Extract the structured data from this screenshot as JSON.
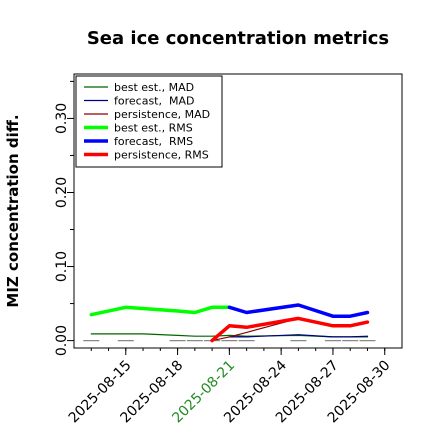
{
  "chart_data": {
    "type": "line",
    "title": "Sea ice concentration metrics",
    "ylabel": "MIZ concentration diff.",
    "xlabel": "",
    "ylim": [
      -0.01,
      0.36
    ],
    "yticks": [
      0.0,
      0.1,
      0.2,
      0.3
    ],
    "ytick_labels": [
      "0.00",
      "0.10",
      "0.20",
      "0.30"
    ],
    "xlim": [
      "2025-08-12",
      "2025-08-31"
    ],
    "xticks": [
      "2025-08-15",
      "2025-08-18",
      "2025-08-21",
      "2025-08-24",
      "2025-08-27",
      "2025-08-30"
    ],
    "xtick_labels": [
      "2025-08-15",
      "2025-08-18",
      "2025-08-21",
      "2025-08-24",
      "2025-08-27",
      "2025-08-30"
    ],
    "highlight_tick": "2025-08-21",
    "highlight_color": "#228b22",
    "grid": false,
    "legend_position": "top-left",
    "series": [
      {
        "name": "best est., MAD",
        "color": "#006400",
        "weight": "thin",
        "x": [
          "2025-08-13",
          "2025-08-15",
          "2025-08-16",
          "2025-08-18",
          "2025-08-19",
          "2025-08-20",
          "2025-08-21",
          "2025-08-22",
          "2025-08-25",
          "2025-08-27",
          "2025-08-28",
          "2025-08-29"
        ],
        "y": [
          0.009,
          0.009,
          0.009,
          0.007,
          0.006,
          0.006,
          0.007,
          0.006,
          0.007,
          0.005,
          0.005,
          0.005
        ]
      },
      {
        "name": "forecast,  MAD",
        "color": "#000080",
        "weight": "thin",
        "x": [
          "2025-08-21",
          "2025-08-22",
          "2025-08-25",
          "2025-08-27",
          "2025-08-28",
          "2025-08-29"
        ],
        "y": [
          0.005,
          0.005,
          0.008,
          0.005,
          0.005,
          0.006
        ]
      },
      {
        "name": "persistence, MAD",
        "color": "#8b0000",
        "weight": "thin",
        "x": [
          "2025-08-20",
          "2025-08-21",
          "2025-08-22",
          "2025-08-25",
          "2025-08-27",
          "2025-08-28",
          "2025-08-29"
        ],
        "y": [
          0.0,
          0.005,
          0.011,
          0.03,
          0.02,
          0.02,
          0.025
        ]
      },
      {
        "name": "best est., RMS",
        "color": "#00ff00",
        "weight": "thick",
        "x": [
          "2025-08-13",
          "2025-08-15",
          "2025-08-18",
          "2025-08-19",
          "2025-08-20",
          "2025-08-21"
        ],
        "y": [
          0.035,
          0.045,
          0.04,
          0.038,
          0.045,
          0.045
        ]
      },
      {
        "name": "forecast,  RMS",
        "color": "#0000ff",
        "weight": "thick",
        "x": [
          "2025-08-21",
          "2025-08-22",
          "2025-08-25",
          "2025-08-27",
          "2025-08-28",
          "2025-08-29"
        ],
        "y": [
          0.045,
          0.038,
          0.048,
          0.033,
          0.033,
          0.038
        ]
      },
      {
        "name": "persistence, RMS",
        "color": "#ff0000",
        "weight": "thick",
        "x": [
          "2025-08-20",
          "2025-08-21",
          "2025-08-22",
          "2025-08-25",
          "2025-08-27",
          "2025-08-28",
          "2025-08-29"
        ],
        "y": [
          0.0,
          0.02,
          0.018,
          0.03,
          0.02,
          0.02,
          0.025
        ]
      }
    ],
    "zero_marks": {
      "color": "#888888",
      "x": [
        "2025-08-13",
        "2025-08-15",
        "2025-08-18",
        "2025-08-19",
        "2025-08-20",
        "2025-08-21",
        "2025-08-22",
        "2025-08-25",
        "2025-08-27",
        "2025-08-28",
        "2025-08-29"
      ]
    }
  }
}
